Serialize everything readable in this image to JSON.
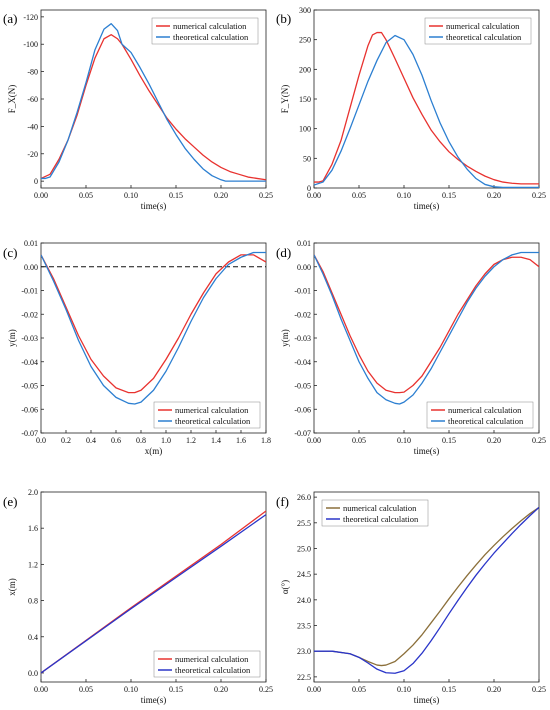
{
  "colors": {
    "red": "#e8322f",
    "blue": "#2c7fd1",
    "olive": "#8b6f3a",
    "deep_blue": "#2a35c9"
  },
  "chart_data": [
    {
      "panel": "(a)",
      "type": "line",
      "xlabel": "time(s)",
      "ylabel": "F_X(N)",
      "xlim": [
        0,
        0.25
      ],
      "ylim": [
        -125,
        5
      ],
      "y_inverted": true,
      "xticks": [
        0,
        0.05,
        0.1,
        0.15,
        0.2,
        0.25
      ],
      "xtick_labels": [
        "0.00",
        "0.05",
        "0.10",
        "0.15",
        "0.20",
        "0.25"
      ],
      "yticks": [
        0,
        -20,
        -40,
        -60,
        -80,
        -100,
        -120
      ],
      "ytick_labels": [
        "0",
        "-20",
        "-40",
        "-60",
        "-80",
        "-100",
        "-120"
      ],
      "legend_position": "top-right",
      "series": [
        {
          "name": "numerical calculation",
          "color": "#e8322f",
          "x": [
            0,
            0.01,
            0.02,
            0.03,
            0.04,
            0.05,
            0.06,
            0.07,
            0.078,
            0.085,
            0.09,
            0.1,
            0.11,
            0.12,
            0.13,
            0.14,
            0.15,
            0.16,
            0.17,
            0.18,
            0.19,
            0.2,
            0.21,
            0.22,
            0.23,
            0.24,
            0.25
          ],
          "y": [
            -2,
            -5,
            -16,
            -30,
            -48,
            -70,
            -90,
            -104,
            -107,
            -104,
            -100,
            -89,
            -77,
            -66,
            -56,
            -46,
            -38,
            -31,
            -25,
            -19,
            -14,
            -10,
            -7,
            -5,
            -3,
            -2,
            -1
          ]
        },
        {
          "name": "theoretical calculation",
          "color": "#2c7fd1",
          "x": [
            0,
            0.005,
            0.01,
            0.02,
            0.03,
            0.04,
            0.05,
            0.06,
            0.07,
            0.078,
            0.085,
            0.09,
            0.1,
            0.11,
            0.12,
            0.13,
            0.14,
            0.15,
            0.16,
            0.17,
            0.18,
            0.19,
            0.2,
            0.205,
            0.21,
            0.25
          ],
          "y": [
            -2,
            -2,
            -3,
            -14,
            -30,
            -50,
            -72,
            -96,
            -111,
            -115,
            -110,
            -100,
            -94,
            -83,
            -71,
            -58,
            -45,
            -34,
            -24,
            -16,
            -9,
            -4,
            -1,
            0,
            0,
            0
          ]
        }
      ]
    },
    {
      "panel": "(b)",
      "type": "line",
      "xlabel": "time(s)",
      "ylabel": "F_Y(N)",
      "xlim": [
        0,
        0.25
      ],
      "ylim": [
        0,
        300
      ],
      "xticks": [
        0,
        0.05,
        0.1,
        0.15,
        0.2,
        0.25
      ],
      "xtick_labels": [
        "0.00",
        "0.05",
        "0.10",
        "0.15",
        "0.20",
        "0.25"
      ],
      "yticks": [
        0,
        50,
        100,
        150,
        200,
        250,
        300
      ],
      "ytick_labels": [
        "0",
        "50",
        "100",
        "150",
        "200",
        "250",
        "300"
      ],
      "legend_position": "top-right",
      "series": [
        {
          "name": "numerical calculation",
          "color": "#e8322f",
          "x": [
            0,
            0.005,
            0.01,
            0.02,
            0.03,
            0.04,
            0.05,
            0.06,
            0.065,
            0.07,
            0.075,
            0.08,
            0.09,
            0.1,
            0.11,
            0.12,
            0.13,
            0.14,
            0.15,
            0.16,
            0.17,
            0.18,
            0.19,
            0.2,
            0.21,
            0.22,
            0.23,
            0.24,
            0.25
          ],
          "y": [
            10,
            10,
            12,
            40,
            80,
            135,
            190,
            240,
            258,
            262,
            262,
            250,
            218,
            185,
            152,
            124,
            98,
            78,
            61,
            48,
            37,
            28,
            20,
            14,
            10,
            8,
            7,
            7,
            7
          ]
        },
        {
          "name": "theoretical calculation",
          "color": "#2c7fd1",
          "x": [
            0,
            0.01,
            0.02,
            0.03,
            0.04,
            0.05,
            0.06,
            0.07,
            0.08,
            0.09,
            0.1,
            0.11,
            0.12,
            0.13,
            0.14,
            0.15,
            0.16,
            0.17,
            0.18,
            0.19,
            0.2,
            0.21,
            0.22,
            0.23,
            0.24,
            0.25
          ],
          "y": [
            5,
            10,
            30,
            62,
            100,
            140,
            180,
            215,
            245,
            257,
            250,
            225,
            190,
            148,
            110,
            78,
            52,
            32,
            16,
            6,
            2,
            1,
            1,
            1,
            1,
            1
          ]
        }
      ]
    },
    {
      "panel": "(c)",
      "type": "line",
      "xlabel": "x(m)",
      "ylabel": "y(m)",
      "xlim": [
        0,
        1.8
      ],
      "ylim": [
        -0.07,
        0.01
      ],
      "xticks": [
        0,
        0.2,
        0.4,
        0.6,
        0.8,
        1.0,
        1.2,
        1.4,
        1.6,
        1.8
      ],
      "xtick_labels": [
        "0.0",
        "0.2",
        "0.4",
        "0.6",
        "0.8",
        "1.0",
        "1.2",
        "1.4",
        "1.6",
        "1.8"
      ],
      "yticks": [
        0.01,
        0,
        -0.01,
        -0.02,
        -0.03,
        -0.04,
        -0.05,
        -0.06,
        -0.07
      ],
      "ytick_labels": [
        "0.01",
        "0.00",
        "-0.01",
        "-0.02",
        "-0.03",
        "-0.04",
        "-0.05",
        "-0.06",
        "-0.07"
      ],
      "reference_line": {
        "y": 0,
        "style": "dashed"
      },
      "legend_position": "bottom-right",
      "series": [
        {
          "name": "numerical calculation",
          "color": "#e8322f",
          "x": [
            0,
            0.1,
            0.2,
            0.3,
            0.4,
            0.5,
            0.6,
            0.7,
            0.75,
            0.8,
            0.9,
            1.0,
            1.1,
            1.2,
            1.3,
            1.4,
            1.5,
            1.6,
            1.7,
            1.8
          ],
          "y": [
            0.005,
            -0.005,
            -0.017,
            -0.029,
            -0.039,
            -0.046,
            -0.051,
            -0.053,
            -0.053,
            -0.052,
            -0.047,
            -0.039,
            -0.03,
            -0.02,
            -0.011,
            -0.003,
            0.002,
            0.005,
            0.005,
            0.002
          ]
        },
        {
          "name": "theoretical calculation",
          "color": "#2c7fd1",
          "x": [
            0,
            0.1,
            0.2,
            0.3,
            0.4,
            0.5,
            0.6,
            0.7,
            0.75,
            0.8,
            0.9,
            1.0,
            1.1,
            1.2,
            1.3,
            1.4,
            1.5,
            1.6,
            1.7,
            1.8
          ],
          "y": [
            0.005,
            -0.006,
            -0.018,
            -0.031,
            -0.042,
            -0.05,
            -0.055,
            -0.0575,
            -0.0578,
            -0.057,
            -0.052,
            -0.044,
            -0.034,
            -0.023,
            -0.013,
            -0.005,
            0.001,
            0.004,
            0.006,
            0.006
          ]
        }
      ]
    },
    {
      "panel": "(d)",
      "type": "line",
      "xlabel": "time(s)",
      "ylabel": "y(m)",
      "xlim": [
        0,
        0.25
      ],
      "ylim": [
        -0.07,
        0.01
      ],
      "xticks": [
        0,
        0.05,
        0.1,
        0.15,
        0.2,
        0.25
      ],
      "xtick_labels": [
        "0.00",
        "0.05",
        "0.10",
        "0.15",
        "0.20",
        "0.25"
      ],
      "yticks": [
        0.01,
        0,
        -0.01,
        -0.02,
        -0.03,
        -0.04,
        -0.05,
        -0.06,
        -0.07
      ],
      "ytick_labels": [
        "0.01",
        "0.00",
        "-0.01",
        "-0.02",
        "-0.03",
        "-0.04",
        "-0.05",
        "-0.06",
        "-0.07"
      ],
      "legend_position": "bottom-right",
      "series": [
        {
          "name": "numerical calculation",
          "color": "#e8322f",
          "x": [
            0,
            0.01,
            0.02,
            0.03,
            0.04,
            0.05,
            0.06,
            0.07,
            0.08,
            0.09,
            0.095,
            0.1,
            0.11,
            0.12,
            0.13,
            0.14,
            0.15,
            0.16,
            0.17,
            0.18,
            0.19,
            0.2,
            0.21,
            0.22,
            0.23,
            0.24,
            0.25
          ],
          "y": [
            0.005,
            -0.002,
            -0.011,
            -0.02,
            -0.029,
            -0.037,
            -0.044,
            -0.049,
            -0.052,
            -0.053,
            -0.053,
            -0.0528,
            -0.05,
            -0.046,
            -0.04,
            -0.034,
            -0.027,
            -0.02,
            -0.014,
            -0.008,
            -0.003,
            0.001,
            0.003,
            0.004,
            0.004,
            0.003,
            0.0
          ]
        },
        {
          "name": "theoretical calculation",
          "color": "#2c7fd1",
          "x": [
            0,
            0.01,
            0.02,
            0.03,
            0.04,
            0.05,
            0.06,
            0.07,
            0.08,
            0.09,
            0.095,
            0.1,
            0.11,
            0.12,
            0.13,
            0.14,
            0.15,
            0.16,
            0.17,
            0.18,
            0.19,
            0.2,
            0.21,
            0.22,
            0.23,
            0.24,
            0.25
          ],
          "y": [
            0.005,
            -0.003,
            -0.012,
            -0.022,
            -0.031,
            -0.04,
            -0.047,
            -0.053,
            -0.056,
            -0.0575,
            -0.0578,
            -0.057,
            -0.054,
            -0.049,
            -0.043,
            -0.036,
            -0.029,
            -0.022,
            -0.015,
            -0.009,
            -0.004,
            0.0,
            0.003,
            0.005,
            0.006,
            0.006,
            0.006
          ]
        }
      ]
    },
    {
      "panel": "(e)",
      "type": "line",
      "xlabel": "time(s)",
      "ylabel": "x(m)",
      "xlim": [
        0,
        0.25
      ],
      "ylim": [
        -0.1,
        2.0
      ],
      "xticks": [
        0,
        0.05,
        0.1,
        0.15,
        0.2,
        0.25
      ],
      "xtick_labels": [
        "0.00",
        "0.05",
        "0.10",
        "0.15",
        "0.20",
        "0.25"
      ],
      "yticks": [
        0,
        0.4,
        0.8,
        1.2,
        1.6,
        2.0
      ],
      "ytick_labels": [
        "0.0",
        "0.4",
        "0.8",
        "1.2",
        "1.6",
        "2.0"
      ],
      "legend_position": "bottom-right",
      "series": [
        {
          "name": "numerical calculation",
          "color": "#e8322f",
          "x": [
            0,
            0.05,
            0.1,
            0.15,
            0.2,
            0.25
          ],
          "y": [
            0,
            0.36,
            0.72,
            1.07,
            1.42,
            1.79
          ]
        },
        {
          "name": "theoretical calculation",
          "color": "#2a35c9",
          "x": [
            0,
            0.05,
            0.1,
            0.15,
            0.2,
            0.25
          ],
          "y": [
            0,
            0.355,
            0.71,
            1.055,
            1.4,
            1.75
          ]
        }
      ]
    },
    {
      "panel": "(f)",
      "type": "line",
      "xlabel": "time(s)",
      "ylabel": "α(°)",
      "xlim": [
        0,
        0.25
      ],
      "ylim": [
        22.4,
        26.1
      ],
      "xticks": [
        0,
        0.05,
        0.1,
        0.15,
        0.2,
        0.25
      ],
      "xtick_labels": [
        "0.00",
        "0.05",
        "0.10",
        "0.15",
        "0.20",
        "0.25"
      ],
      "yticks": [
        22.5,
        23.0,
        23.5,
        24.0,
        24.5,
        25.0,
        25.5,
        26.0
      ],
      "ytick_labels": [
        "22.5",
        "23.0",
        "23.5",
        "24.0",
        "24.5",
        "25.0",
        "25.5",
        "26.0"
      ],
      "legend_position": "top-left",
      "series": [
        {
          "name": "numerical calculation",
          "color": "#8b6f3a",
          "x": [
            0,
            0.02,
            0.04,
            0.05,
            0.06,
            0.07,
            0.075,
            0.08,
            0.09,
            0.1,
            0.11,
            0.12,
            0.13,
            0.14,
            0.15,
            0.16,
            0.17,
            0.18,
            0.19,
            0.2,
            0.21,
            0.22,
            0.23,
            0.24,
            0.25
          ],
          "y": [
            23.0,
            23.0,
            22.95,
            22.88,
            22.8,
            22.73,
            22.72,
            22.73,
            22.8,
            22.95,
            23.12,
            23.32,
            23.55,
            23.78,
            24.02,
            24.25,
            24.47,
            24.68,
            24.88,
            25.06,
            25.23,
            25.39,
            25.54,
            25.68,
            25.8
          ]
        },
        {
          "name": "theoretical calculation",
          "color": "#2a35c9",
          "x": [
            0,
            0.02,
            0.04,
            0.05,
            0.06,
            0.07,
            0.08,
            0.09,
            0.1,
            0.11,
            0.12,
            0.13,
            0.14,
            0.15,
            0.16,
            0.17,
            0.18,
            0.19,
            0.2,
            0.21,
            0.22,
            0.23,
            0.24,
            0.25
          ],
          "y": [
            23.0,
            23.0,
            22.95,
            22.88,
            22.77,
            22.65,
            22.58,
            22.57,
            22.62,
            22.76,
            22.96,
            23.2,
            23.46,
            23.73,
            23.99,
            24.24,
            24.48,
            24.7,
            24.91,
            25.1,
            25.29,
            25.47,
            25.64,
            25.8
          ]
        }
      ]
    }
  ]
}
